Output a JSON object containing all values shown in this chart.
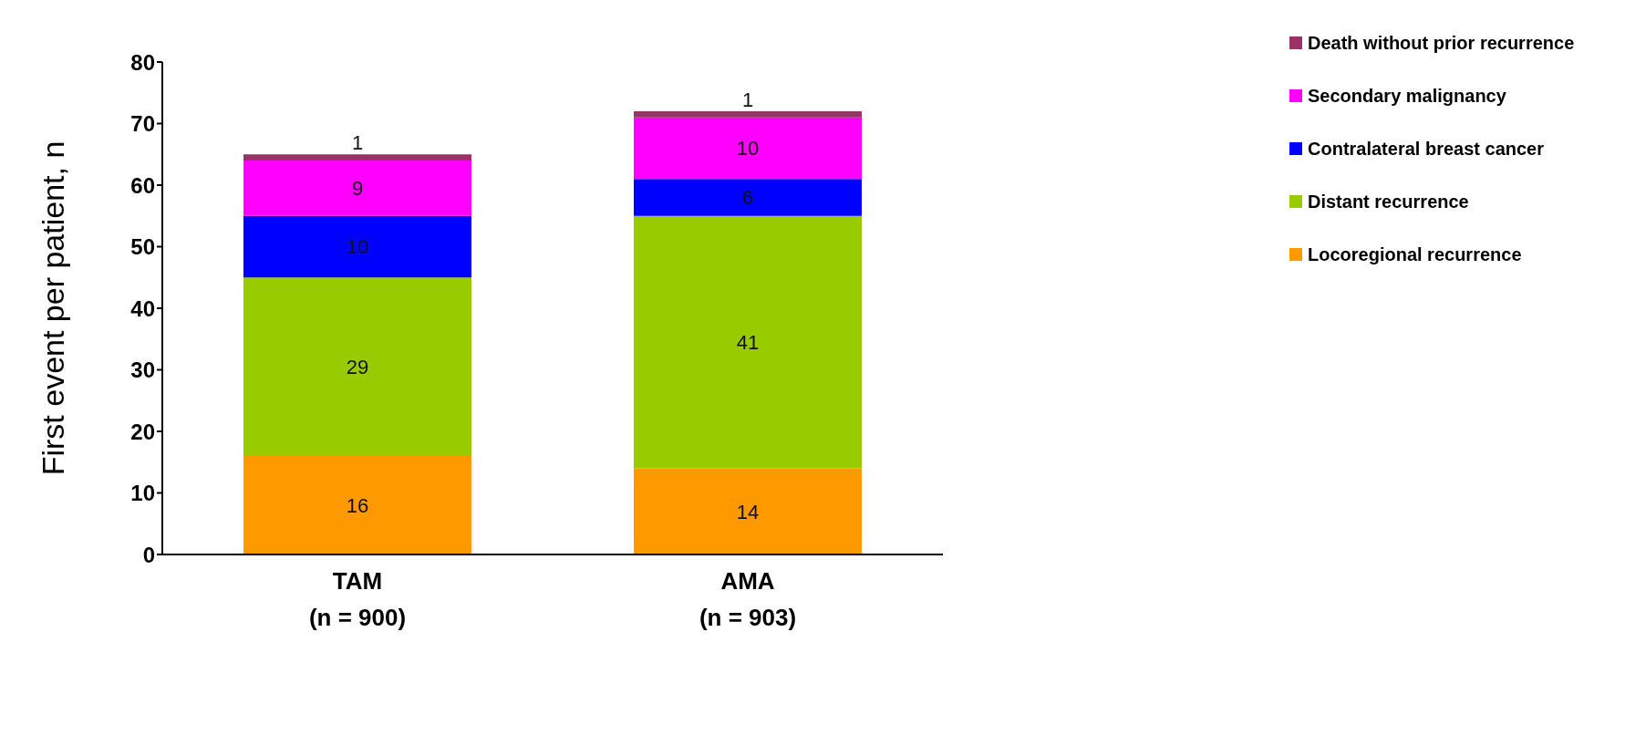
{
  "chart_data": {
    "type": "bar",
    "stacked": true,
    "categories": [
      "TAM\n(n = 900)",
      "AMA\n(n = 903)"
    ],
    "ylabel": "First event per patient, n",
    "ylim": [
      0,
      80
    ],
    "yticks": [
      0,
      10,
      20,
      30,
      40,
      50,
      60,
      70,
      80
    ],
    "grid": false,
    "legend": "top right",
    "data_labels": true,
    "series": [
      {
        "name": "Locoregional recurrence",
        "color": "#ff9900",
        "values": [
          16,
          14
        ]
      },
      {
        "name": "Distant recurrence",
        "color": "#99cc00",
        "values": [
          29,
          41
        ]
      },
      {
        "name": "Contralateral breast cancer",
        "color": "#0000ff",
        "values": [
          10,
          6
        ]
      },
      {
        "name": "Secondary malignancy",
        "color": "#ff00ff",
        "values": [
          9,
          10
        ]
      },
      {
        "name": "Death without prior recurrence",
        "color": "#993366",
        "values": [
          1,
          1
        ]
      }
    ]
  }
}
